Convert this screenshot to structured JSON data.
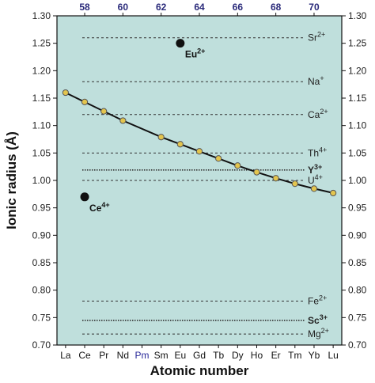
{
  "chart_data": {
    "type": "line",
    "xlabel": "Atomic number",
    "ylabel": "Ionic radius (Å)",
    "ylim": [
      0.7,
      1.3
    ],
    "yticks": [
      "0.70",
      "0.75",
      "0.80",
      "0.85",
      "0.90",
      "0.95",
      "1.00",
      "1.05",
      "1.10",
      "1.15",
      "1.20",
      "1.25",
      "1.30"
    ],
    "ytick_values": [
      0.7,
      0.75,
      0.8,
      0.85,
      0.9,
      0.95,
      1.0,
      1.05,
      1.1,
      1.15,
      1.2,
      1.25,
      1.3
    ],
    "categories": [
      "La",
      "Ce",
      "Pr",
      "Nd",
      "Pm",
      "Sm",
      "Eu",
      "Gd",
      "Tb",
      "Dy",
      "Ho",
      "Er",
      "Tm",
      "Yb",
      "Lu"
    ],
    "category_colors": [
      "#111111",
      "#111111",
      "#111111",
      "#111111",
      "#2a2a9a",
      "#111111",
      "#111111",
      "#111111",
      "#111111",
      "#111111",
      "#111111",
      "#111111",
      "#111111",
      "#111111",
      "#111111"
    ],
    "top_axis_ticks": [
      {
        "label": "58",
        "index": 1
      },
      {
        "label": "60",
        "index": 3
      },
      {
        "label": "62",
        "index": 5
      },
      {
        "label": "64",
        "index": 7
      },
      {
        "label": "66",
        "index": 9
      },
      {
        "label": "68",
        "index": 11
      },
      {
        "label": "70",
        "index": 13
      }
    ],
    "series": [
      {
        "values": [
          1.16,
          1.143,
          1.126,
          1.109,
          null,
          1.079,
          1.066,
          1.053,
          1.04,
          1.027,
          1.015,
          1.004,
          0.994,
          0.985,
          0.977
        ]
      }
    ],
    "reference_lines": [
      {
        "label": "Sr",
        "charge": "2+",
        "value": 1.26,
        "style": "dashed",
        "bold": false
      },
      {
        "label": "Na",
        "charge": "+",
        "value": 1.18,
        "style": "dashed",
        "bold": false
      },
      {
        "label": "Ca",
        "charge": "2+",
        "value": 1.12,
        "style": "dashed",
        "bold": false
      },
      {
        "label": "Th",
        "charge": "4+",
        "value": 1.05,
        "style": "dashed",
        "bold": false
      },
      {
        "label": "Y",
        "charge": "3+",
        "value": 1.019,
        "style": "dotted",
        "bold": true
      },
      {
        "label": "U",
        "charge": "4+",
        "value": 1.0,
        "style": "dashed",
        "bold": false
      },
      {
        "label": "Fe",
        "charge": "2+",
        "value": 0.78,
        "style": "dashed",
        "bold": false
      },
      {
        "label": "Sc",
        "charge": "3+",
        "value": 0.745,
        "style": "dotted",
        "bold": true
      },
      {
        "label": "Mg",
        "charge": "2+",
        "value": 0.72,
        "style": "dashed",
        "bold": false
      }
    ],
    "highlight_points": [
      {
        "label": "Eu",
        "charge": "2+",
        "category": "Eu",
        "value": 1.25
      },
      {
        "label": "Ce",
        "charge": "4+",
        "category": "Ce",
        "value": 0.97
      }
    ],
    "colors": {
      "plot_background": "#bfdfdc",
      "line": "#111111",
      "marker_fill": "#e3c54e",
      "marker_stroke": "#555555",
      "highlight_marker": "#111111"
    }
  }
}
